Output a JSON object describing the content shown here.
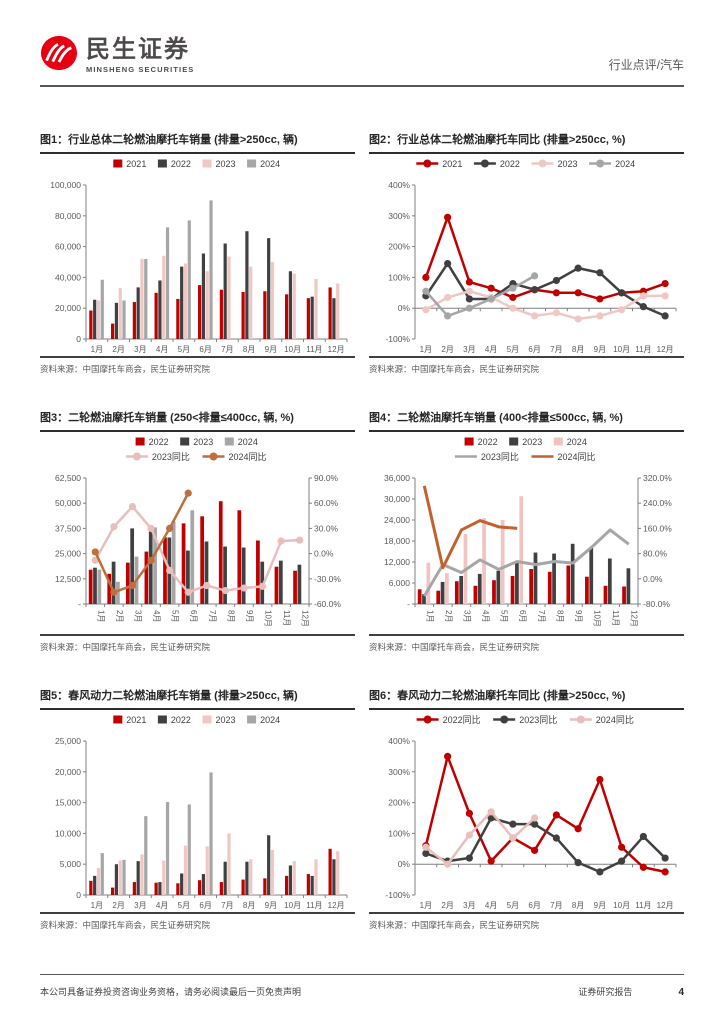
{
  "header": {
    "brand": "民生证券",
    "brand_sub": "MINSHENG SECURITIES",
    "right": "行业点评/汽车",
    "logo_color": "#E60012"
  },
  "footer": {
    "left": "本公司具备证券投资咨询业务资格，请务必阅读最后一页免责声明",
    "right": "证券研究报告",
    "page": "4"
  },
  "source_label": "资料来源：中国摩托车商会，民生证券研究院",
  "chart_data": [
    {
      "type": "bar",
      "title": "图1：行业总体二轮燃油摩托车销量 (排量>250cc, 辆)",
      "categories": [
        "1月",
        "2月",
        "3月",
        "4月",
        "5月",
        "6月",
        "7月",
        "8月",
        "9月",
        "10月",
        "11月",
        "12月"
      ],
      "left_axis": {
        "min": 0,
        "max": 100000,
        "step": 20000,
        "format": "number",
        "zero_dash": false
      },
      "series": [
        {
          "name": "2021",
          "kind": "bar",
          "color": "#C00000",
          "values": [
            18500,
            10000,
            24000,
            30000,
            26000,
            35000,
            32000,
            30500,
            31000,
            29000,
            26500,
            33500
          ]
        },
        {
          "name": "2022",
          "kind": "bar",
          "color": "#404040",
          "values": [
            25500,
            23500,
            33500,
            38000,
            47000,
            55500,
            62000,
            70000,
            65500,
            44000,
            27500,
            26500
          ]
        },
        {
          "name": "2023",
          "kind": "bar",
          "color": "#EFC7C5",
          "values": [
            25000,
            33000,
            52000,
            54000,
            49000,
            44000,
            53500,
            47000,
            50000,
            42500,
            39000,
            36000
          ]
        },
        {
          "name": "2024",
          "kind": "bar",
          "color": "#A6A6A6",
          "values": [
            38500,
            25000,
            52000,
            72500,
            77000,
            90000
          ]
        }
      ]
    },
    {
      "type": "line",
      "title": "图2：行业总体二轮燃油摩托车同比 (排量>250cc, %)",
      "categories": [
        "1月",
        "2月",
        "3月",
        "4月",
        "5月",
        "6月",
        "7月",
        "8月",
        "9月",
        "10月",
        "11月",
        "12月"
      ],
      "left_axis": {
        "min": -100,
        "max": 400,
        "step": 100,
        "format": "p0"
      },
      "series": [
        {
          "name": "2021",
          "kind": "line",
          "color": "#C00000",
          "markers": true,
          "values": [
            100,
            295,
            85,
            65,
            35,
            60,
            50,
            50,
            30,
            50,
            55,
            80
          ]
        },
        {
          "name": "2022",
          "kind": "line",
          "color": "#404040",
          "markers": true,
          "values": [
            40,
            145,
            30,
            30,
            80,
            60,
            90,
            130,
            115,
            50,
            5,
            -25
          ]
        },
        {
          "name": "2023",
          "kind": "line",
          "color": "#EFC7C5",
          "markers": true,
          "values": [
            -5,
            35,
            55,
            35,
            0,
            -25,
            -15,
            -35,
            -25,
            -5,
            40,
            40
          ]
        },
        {
          "name": "2024",
          "kind": "line",
          "color": "#A6A6A6",
          "markers": true,
          "values": [
            55,
            -25,
            0,
            30,
            65,
            105
          ]
        }
      ]
    },
    {
      "type": "bar",
      "title": "图3：二轮燃油摩托车销量 (250<排量≤400cc, 辆, %)",
      "categories": [
        "1月",
        "2月",
        "3月",
        "4月",
        "5月",
        "6月",
        "7月",
        "8月",
        "9月",
        "10月",
        "11月",
        "12月"
      ],
      "legend_two_rows": true,
      "x_rotate": true,
      "left_axis": {
        "min": 0,
        "max": 62500,
        "step": 12500,
        "format": "number",
        "zero_dash": true
      },
      "right_axis": {
        "min": -60,
        "max": 90,
        "step": 30,
        "format": "p1"
      },
      "series": [
        {
          "name": "2022",
          "kind": "bar",
          "color": "#C00000",
          "values": [
            17000,
            15000,
            20500,
            26000,
            33000,
            40000,
            43500,
            51000,
            46500,
            31500,
            18500,
            16500
          ]
        },
        {
          "name": "2023",
          "kind": "bar",
          "color": "#404040",
          "values": [
            18000,
            21000,
            37500,
            36000,
            33000,
            26500,
            31000,
            28500,
            28000,
            21000,
            21500,
            19500
          ]
        },
        {
          "name": "2024",
          "kind": "bar",
          "color": "#A6A6A6",
          "values": [
            17000,
            11000,
            23500,
            38000,
            41000,
            46500
          ]
        },
        {
          "name": "2023同比",
          "kind": "line",
          "color": "#E9BEBC",
          "markers": true,
          "values": [
            -8,
            32,
            56,
            30,
            -20,
            -46,
            -38,
            -44,
            -41,
            -39,
            15,
            16
          ]
        },
        {
          "name": "2024同比",
          "kind": "line",
          "color": "#BE6E3F",
          "markers": true,
          "values": [
            2,
            -46,
            -38,
            -8,
            30,
            72
          ]
        }
      ]
    },
    {
      "type": "bar",
      "title": "图4：二轮燃油摩托车销量 (400<排量≤500cc, 辆, %)",
      "categories": [
        "1月",
        "2月",
        "3月",
        "4月",
        "5月",
        "6月",
        "7月",
        "8月",
        "9月",
        "10月",
        "11月",
        "12月"
      ],
      "legend_two_rows": true,
      "x_rotate": true,
      "left_axis": {
        "min": 0,
        "max": 36000,
        "step": 6000,
        "format": "number",
        "zero_dash": true
      },
      "right_axis": {
        "min": -80,
        "max": 320,
        "step": 80,
        "format": "p1"
      },
      "series": [
        {
          "name": "2022",
          "kind": "bar",
          "color": "#C00000",
          "values": [
            4200,
            3800,
            6500,
            5200,
            6800,
            8000,
            10000,
            9200,
            11000,
            7800,
            5200,
            5000
          ]
        },
        {
          "name": "2023",
          "kind": "bar",
          "color": "#404040",
          "values": [
            2800,
            6300,
            8000,
            8600,
            9500,
            11800,
            14700,
            14400,
            17200,
            16000,
            13000,
            10200
          ]
        },
        {
          "name": "2024",
          "kind": "bar",
          "color": "#F0C4C2",
          "values": [
            11800,
            8800,
            20000,
            24500,
            24000,
            30800
          ]
        },
        {
          "name": "2023同比",
          "kind": "line",
          "color": "#A6A6A6",
          "markers": false,
          "values": [
            -55,
            45,
            20,
            60,
            30,
            55,
            45,
            55,
            50,
            100,
            155,
            110
          ]
        },
        {
          "name": "2024同比",
          "kind": "line",
          "color": "#C2602F",
          "markers": false,
          "values": [
            295,
            35,
            155,
            185,
            165,
            160
          ]
        }
      ]
    },
    {
      "type": "bar",
      "title": "图5：春风动力二轮燃油摩托车销量 (排量>250cc, 辆)",
      "categories": [
        "1月",
        "2月",
        "3月",
        "4月",
        "5月",
        "6月",
        "7月",
        "8月",
        "9月",
        "10月",
        "11月",
        "12月"
      ],
      "left_axis": {
        "min": 0,
        "max": 25000,
        "step": 5000,
        "format": "number",
        "zero_dash": false
      },
      "series": [
        {
          "name": "2021",
          "kind": "bar",
          "color": "#C00000",
          "values": [
            2300,
            1200,
            2100,
            2000,
            1900,
            2400,
            2100,
            2500,
            2700,
            3100,
            3400,
            7500
          ]
        },
        {
          "name": "2022",
          "kind": "bar",
          "color": "#404040",
          "values": [
            3100,
            5000,
            5500,
            2100,
            3500,
            3400,
            5400,
            5400,
            9700,
            4800,
            3100,
            5800
          ]
        },
        {
          "name": "2023",
          "kind": "bar",
          "color": "#EFC7C5",
          "values": [
            4400,
            5600,
            6600,
            5600,
            8000,
            7900,
            10000,
            5800,
            7300,
            5500,
            5800,
            7100
          ]
        },
        {
          "name": "2024",
          "kind": "bar",
          "color": "#A6A6A6",
          "values": [
            6800,
            5700,
            12800,
            15100,
            14700,
            19900
          ]
        }
      ]
    },
    {
      "type": "line",
      "title": "图6：春风动力二轮燃油摩托车同比 (排量>250cc, %)",
      "categories": [
        "1月",
        "2月",
        "3月",
        "4月",
        "5月",
        "6月",
        "7月",
        "8月",
        "9月",
        "10月",
        "11月",
        "12月"
      ],
      "left_axis": {
        "min": -100,
        "max": 400,
        "step": 100,
        "format": "p0"
      },
      "series": [
        {
          "name": "2022同比",
          "kind": "line",
          "color": "#C00000",
          "markers": true,
          "values": [
            60,
            350,
            165,
            10,
            85,
            45,
            160,
            115,
            275,
            55,
            -10,
            -25
          ]
        },
        {
          "name": "2023同比",
          "kind": "line",
          "color": "#404040",
          "markers": true,
          "values": [
            35,
            10,
            20,
            150,
            130,
            130,
            85,
            5,
            -25,
            10,
            90,
            20
          ]
        },
        {
          "name": "2024同比",
          "kind": "line",
          "color": "#E9BEBC",
          "markers": true,
          "values": [
            55,
            0,
            95,
            170,
            85,
            150
          ]
        }
      ]
    }
  ]
}
